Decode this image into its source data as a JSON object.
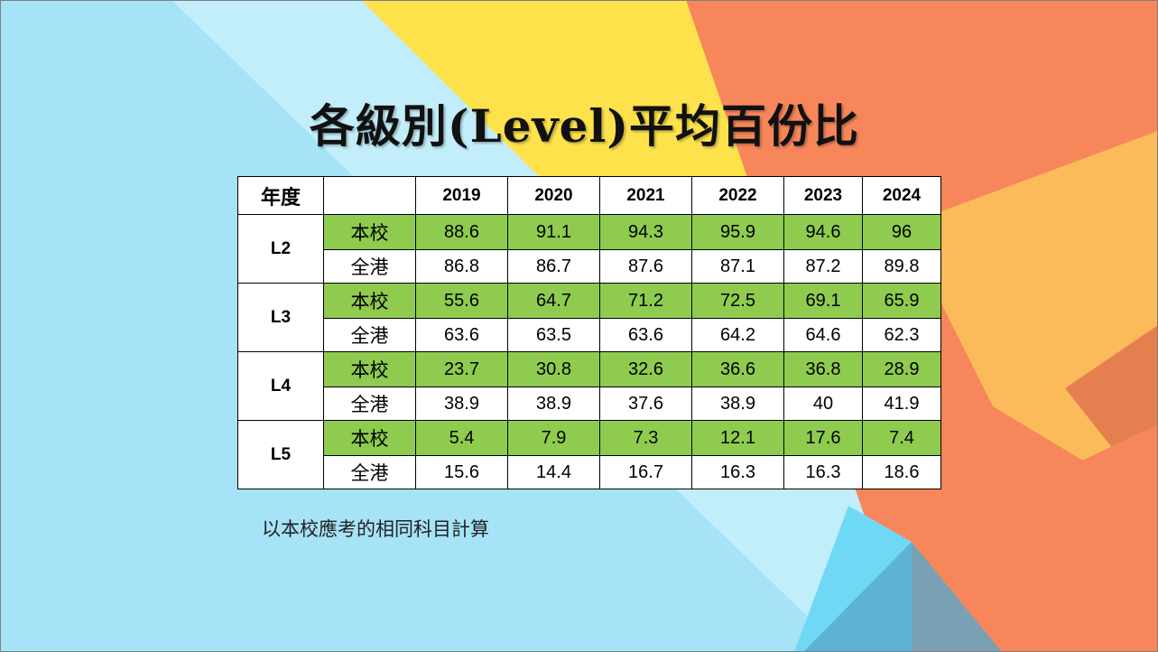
{
  "slide": {
    "title": "各級別(Level)平均百份比",
    "footnote": "以本校應考的相同科目計算"
  },
  "table": {
    "corner_label": "年度",
    "years": [
      "2019",
      "2020",
      "2021",
      "2022",
      "2023",
      "2024"
    ],
    "groups": [
      {
        "level": "L2",
        "rows": [
          {
            "label": "本校",
            "values": [
              "88.6",
              "91.1",
              "94.3",
              "95.9",
              "94.6",
              "96"
            ]
          },
          {
            "label": "全港",
            "values": [
              "86.8",
              "86.7",
              "87.6",
              "87.1",
              "87.2",
              "89.8"
            ]
          }
        ]
      },
      {
        "level": "L3",
        "rows": [
          {
            "label": "本校",
            "values": [
              "55.6",
              "64.7",
              "71.2",
              "72.5",
              "69.1",
              "65.9"
            ]
          },
          {
            "label": "全港",
            "values": [
              "63.6",
              "63.5",
              "63.6",
              "64.2",
              "64.6",
              "62.3"
            ]
          }
        ]
      },
      {
        "level": "L4",
        "rows": [
          {
            "label": "本校",
            "values": [
              "23.7",
              "30.8",
              "32.6",
              "36.6",
              "36.8",
              "28.9"
            ]
          },
          {
            "label": "全港",
            "values": [
              "38.9",
              "38.9",
              "37.6",
              "38.9",
              "40",
              "41.9"
            ]
          }
        ]
      },
      {
        "level": "L5",
        "rows": [
          {
            "label": "本校",
            "values": [
              "5.4",
              "7.9",
              "7.3",
              "12.1",
              "17.6",
              "7.4"
            ]
          },
          {
            "label": "全港",
            "values": [
              "15.6",
              "14.4",
              "16.7",
              "16.3",
              "16.3",
              "18.6"
            ]
          }
        ]
      }
    ]
  },
  "colors": {
    "school_row": "#8fcb4f",
    "background_blue": "#a6e3f7",
    "background_yellow": "#fde24c",
    "background_orange": "#f7875a"
  }
}
